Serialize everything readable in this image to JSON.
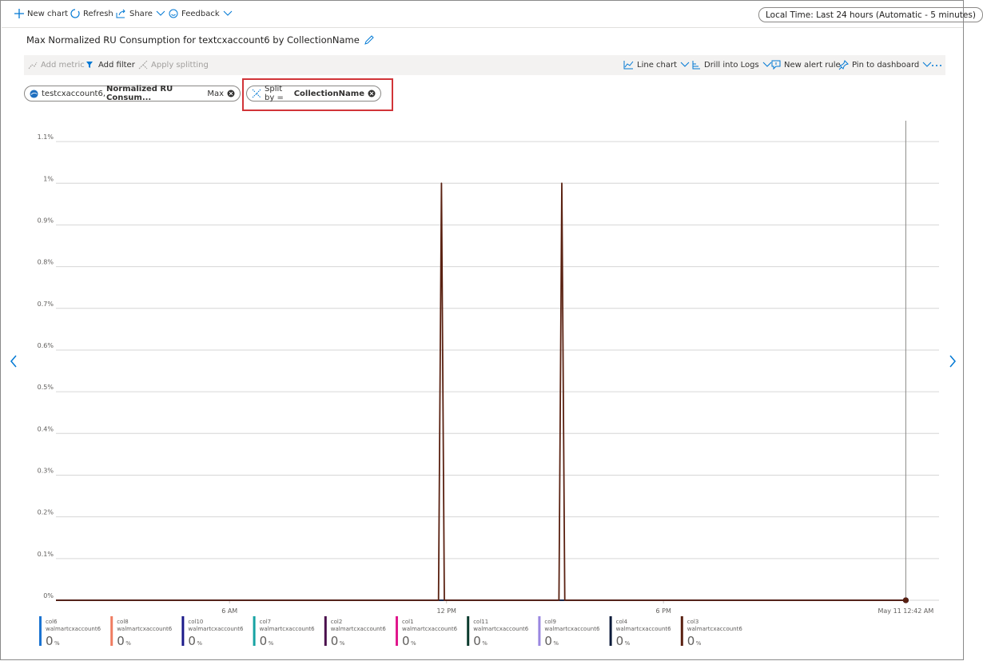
{
  "toolbar": {
    "new_chart": "New chart",
    "refresh": "Refresh",
    "share": "Share",
    "feedback": "Feedback",
    "time_range": "Local Time: Last 24 hours (Automatic - 5 minutes)"
  },
  "title": "Max Normalized RU Consumption for textcxaccount6 by CollectionName",
  "chart_toolbar": {
    "add_metric": "Add metric",
    "add_filter": "Add filter",
    "apply_splitting": "Apply splitting",
    "line_chart": "Line chart",
    "drill_logs": "Drill into Logs",
    "new_alert": "New alert rule",
    "pin": "Pin to dashboard"
  },
  "pills": {
    "metric_account": "testcxaccount6,",
    "metric_name": "Normalized RU Consum...",
    "metric_agg": "Max",
    "split_label": "Split by =",
    "split_value": "CollectionName"
  },
  "chart_data": {
    "type": "line",
    "ylim": [
      0,
      1.15
    ],
    "yticks": [
      {
        "value": 0,
        "label": "0%"
      },
      {
        "value": 0.1,
        "label": "0.1%"
      },
      {
        "value": 0.2,
        "label": "0.2%"
      },
      {
        "value": 0.3,
        "label": "0.3%"
      },
      {
        "value": 0.4,
        "label": "0.4%"
      },
      {
        "value": 0.5,
        "label": "0.5%"
      },
      {
        "value": 0.6,
        "label": "0.6%"
      },
      {
        "value": 0.7,
        "label": "0.7%"
      },
      {
        "value": 0.8,
        "label": "0.8%"
      },
      {
        "value": 0.9,
        "label": "0.9%"
      },
      {
        "value": 1,
        "label": "1%"
      },
      {
        "value": 1.1,
        "label": "1.1%"
      }
    ],
    "xlim": [
      1.2,
      25.2
    ],
    "xticks": [
      {
        "value": 6,
        "label": "6 AM"
      },
      {
        "value": 12,
        "label": "12 PM"
      },
      {
        "value": 18,
        "label": "6 PM"
      },
      {
        "value": 24.7,
        "label": "May 11 12:42 AM"
      }
    ],
    "grid": true,
    "account": "walmartcxaccount6",
    "legend_unit": "%",
    "series": [
      {
        "name": "col6",
        "color": "#1b73d1",
        "x": [
          1.2,
          24.7
        ],
        "values": [
          0,
          0
        ],
        "legend_value": 0
      },
      {
        "name": "col8",
        "color": "#ef7c60",
        "x": [
          1.2,
          24.7
        ],
        "values": [
          0,
          0
        ],
        "legend_value": 0
      },
      {
        "name": "col10",
        "color": "#1c1a8a",
        "x": [
          1.2,
          24.7
        ],
        "values": [
          0,
          0
        ],
        "legend_value": 0
      },
      {
        "name": "col7",
        "color": "#17a3a3",
        "x": [
          1.2,
          24.7
        ],
        "values": [
          0,
          0
        ],
        "legend_value": 0
      },
      {
        "name": "col2",
        "color": "#4b104c",
        "x": [
          1.2,
          24.7
        ],
        "values": [
          0,
          0
        ],
        "legend_value": 0
      },
      {
        "name": "col1",
        "color": "#e0178c",
        "x": [
          1.2,
          24.7
        ],
        "values": [
          0,
          0
        ],
        "legend_value": 0
      },
      {
        "name": "col11",
        "color": "#0b3b2d",
        "x": [
          1.2,
          24.7
        ],
        "values": [
          0,
          0
        ],
        "legend_value": 0
      },
      {
        "name": "col9",
        "color": "#9a87e0",
        "x": [
          1.2,
          24.7
        ],
        "values": [
          0,
          0
        ],
        "legend_value": 0
      },
      {
        "name": "col4",
        "color": "#0c1b3a",
        "x": [
          1.2,
          24.7
        ],
        "values": [
          0,
          0
        ],
        "legend_value": 0
      },
      {
        "name": "col3",
        "color": "#5a2111",
        "x": [
          1.2,
          11.78,
          11.86,
          11.94,
          15.11,
          15.19,
          15.27,
          24.7
        ],
        "values": [
          0,
          0,
          1,
          0,
          0,
          1,
          0,
          0
        ],
        "legend_value": 0
      }
    ]
  }
}
